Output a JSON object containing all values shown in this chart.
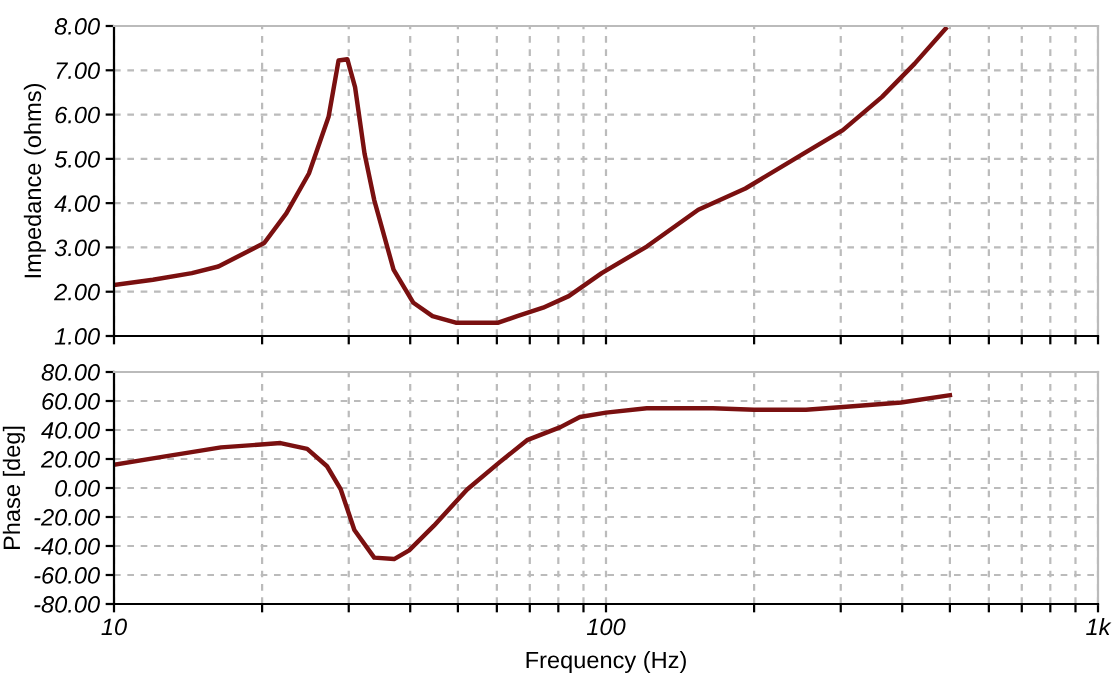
{
  "chart_data": [
    {
      "type": "line",
      "ylabel": "Impedance (ohms)",
      "log": "x",
      "grid": true,
      "tick_labels": "y",
      "xlim": [
        10,
        1000
      ],
      "ylim": [
        1,
        8
      ],
      "xticks": [
        {
          "value": 10,
          "label": null
        },
        {
          "value": 20,
          "label": null
        },
        {
          "value": 30,
          "label": null
        },
        {
          "value": 40,
          "label": null
        },
        {
          "value": 50,
          "label": null
        },
        {
          "value": 60,
          "label": null
        },
        {
          "value": 70,
          "label": null
        },
        {
          "value": 80,
          "label": null
        },
        {
          "value": 90,
          "label": null
        },
        {
          "value": 100,
          "label": null
        },
        {
          "value": 200,
          "label": null
        },
        {
          "value": 300,
          "label": null
        },
        {
          "value": 400,
          "label": null
        },
        {
          "value": 500,
          "label": null
        },
        {
          "value": 600,
          "label": null
        },
        {
          "value": 700,
          "label": null
        },
        {
          "value": 800,
          "label": null
        },
        {
          "value": 900,
          "label": null
        },
        {
          "value": 1000,
          "label": null
        }
      ],
      "yticks": [
        {
          "value": 1,
          "label": "1.00"
        },
        {
          "value": 2,
          "label": "2.00"
        },
        {
          "value": 3,
          "label": "3.00"
        },
        {
          "value": 4,
          "label": "4.00"
        },
        {
          "value": 5,
          "label": "5.00"
        },
        {
          "value": 6,
          "label": "6.00"
        },
        {
          "value": 7,
          "label": "7.00"
        },
        {
          "value": 8,
          "label": "8.00"
        }
      ],
      "series": [
        {
          "color": "#7a1010",
          "x": [
            10,
            12,
            14.4,
            16.3,
            18.4,
            20.2,
            22.4,
            24.9,
            27.3,
            28.6,
            29.8,
            30.9,
            32.3,
            33.8,
            37,
            40.6,
            44.4,
            49.5,
            55,
            60.4,
            66,
            74.5,
            84,
            98,
            121,
            154,
            192,
            252,
            303,
            364,
            424,
            490
          ],
          "values": [
            2.15,
            2.27,
            2.42,
            2.57,
            2.87,
            3.1,
            3.77,
            4.67,
            5.95,
            7.22,
            7.25,
            6.62,
            5.12,
            4.07,
            2.5,
            1.75,
            1.45,
            1.3,
            1.3,
            1.3,
            1.45,
            1.64,
            1.9,
            2.42,
            3.02,
            3.85,
            4.33,
            5.12,
            5.65,
            6.4,
            7.15,
            7.94
          ]
        }
      ]
    },
    {
      "type": "line",
      "xlabel": "Frequency (Hz)",
      "ylabel": "Phase [deg]",
      "log": "x",
      "grid": true,
      "xlim": [
        10,
        1000
      ],
      "ylim": [
        -80,
        80
      ],
      "xticks": [
        10,
        {
          "value": 20,
          "label": null
        },
        {
          "value": 30,
          "label": null
        },
        {
          "value": 40,
          "label": null
        },
        {
          "value": 50,
          "label": null
        },
        {
          "value": 60,
          "label": null
        },
        {
          "value": 70,
          "label": null
        },
        {
          "value": 80,
          "label": null
        },
        {
          "value": 90,
          "label": null
        },
        100,
        {
          "value": 200,
          "label": null
        },
        {
          "value": 300,
          "label": null
        },
        {
          "value": 400,
          "label": null
        },
        {
          "value": 500,
          "label": null
        },
        {
          "value": 600,
          "label": null
        },
        {
          "value": 700,
          "label": null
        },
        {
          "value": 800,
          "label": null
        },
        {
          "value": 900,
          "label": null
        },
        {
          "value": 1000,
          "label": "1k"
        }
      ],
      "yticks": [
        {
          "value": -80,
          "label": "-80.00"
        },
        {
          "value": -60,
          "label": "-60.00"
        },
        {
          "value": -40,
          "label": "-40.00"
        },
        {
          "value": -20,
          "label": "-20.00"
        },
        {
          "value": 0,
          "label": "0.00"
        },
        {
          "value": 20,
          "label": "20.00"
        },
        {
          "value": 40,
          "label": "40.00"
        },
        {
          "value": 60,
          "label": "60.00"
        },
        {
          "value": 80,
          "label": "80.00"
        }
      ],
      "series": [
        {
          "color": "#7a1010",
          "x": [
            10,
            12.8,
            16.5,
            19.9,
            21.8,
            24.7,
            27.1,
            28.9,
            30.8,
            33.8,
            37.1,
            39.8,
            44.7,
            52.2,
            60.9,
            69.1,
            80.8,
            88.5,
            100,
            121,
            165,
            200,
            255,
            308,
            398,
            500
          ],
          "values": [
            16,
            22,
            28,
            30,
            31,
            27,
            15,
            -1,
            -29,
            -48,
            -49,
            -43,
            -26,
            -1,
            18,
            33,
            42,
            49,
            52,
            55,
            55,
            54,
            54,
            56,
            59,
            64
          ]
        }
      ]
    }
  ]
}
